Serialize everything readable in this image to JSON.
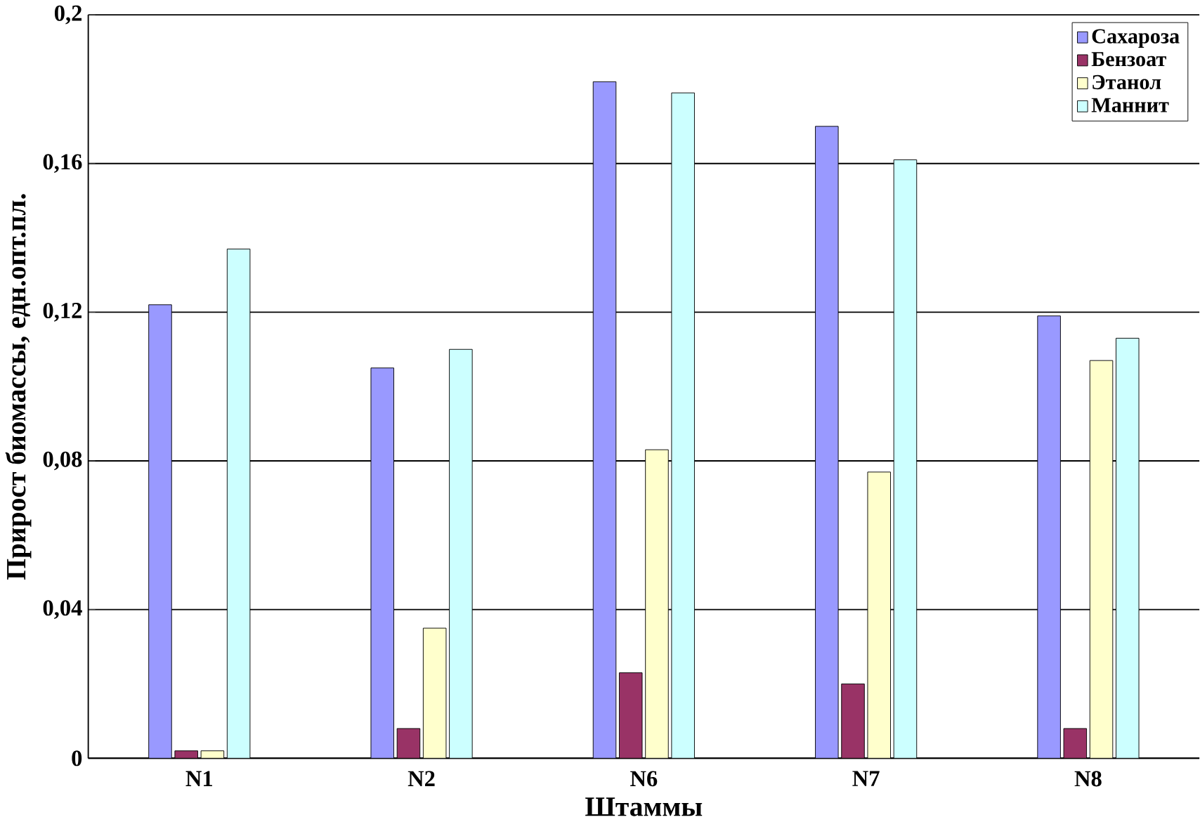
{
  "chart_data": {
    "type": "bar",
    "xlabel": "Штаммы",
    "ylabel": "Прирост биомассы, едн.опт.пл.",
    "categories": [
      "N1",
      "N2",
      "N6",
      "N7",
      "N8"
    ],
    "series": [
      {
        "name": "Сахароза",
        "color": "#9999ff",
        "values": [
          0.122,
          0.105,
          0.182,
          0.17,
          0.119
        ]
      },
      {
        "name": "Бензоат",
        "color": "#993366",
        "values": [
          0.002,
          0.008,
          0.023,
          0.02,
          0.008
        ]
      },
      {
        "name": "Этанол",
        "color": "#ffffcc",
        "values": [
          0.002,
          0.035,
          0.083,
          0.077,
          0.107
        ]
      },
      {
        "name": "Маннит",
        "color": "#ccffff",
        "values": [
          0.137,
          0.11,
          0.179,
          0.161,
          0.113
        ]
      }
    ],
    "ylim": [
      0,
      0.2
    ],
    "yticks": [
      0,
      {
        "value": 0.04,
        "label": "0,04"
      },
      {
        "value": 0.08,
        "label": "0,08"
      },
      {
        "value": 0.12,
        "label": "0,12"
      },
      {
        "value": 0.16,
        "label": "0,16"
      },
      {
        "value": 0.2,
        "label": "0,2"
      }
    ],
    "grid": "y",
    "legend": "top right"
  }
}
